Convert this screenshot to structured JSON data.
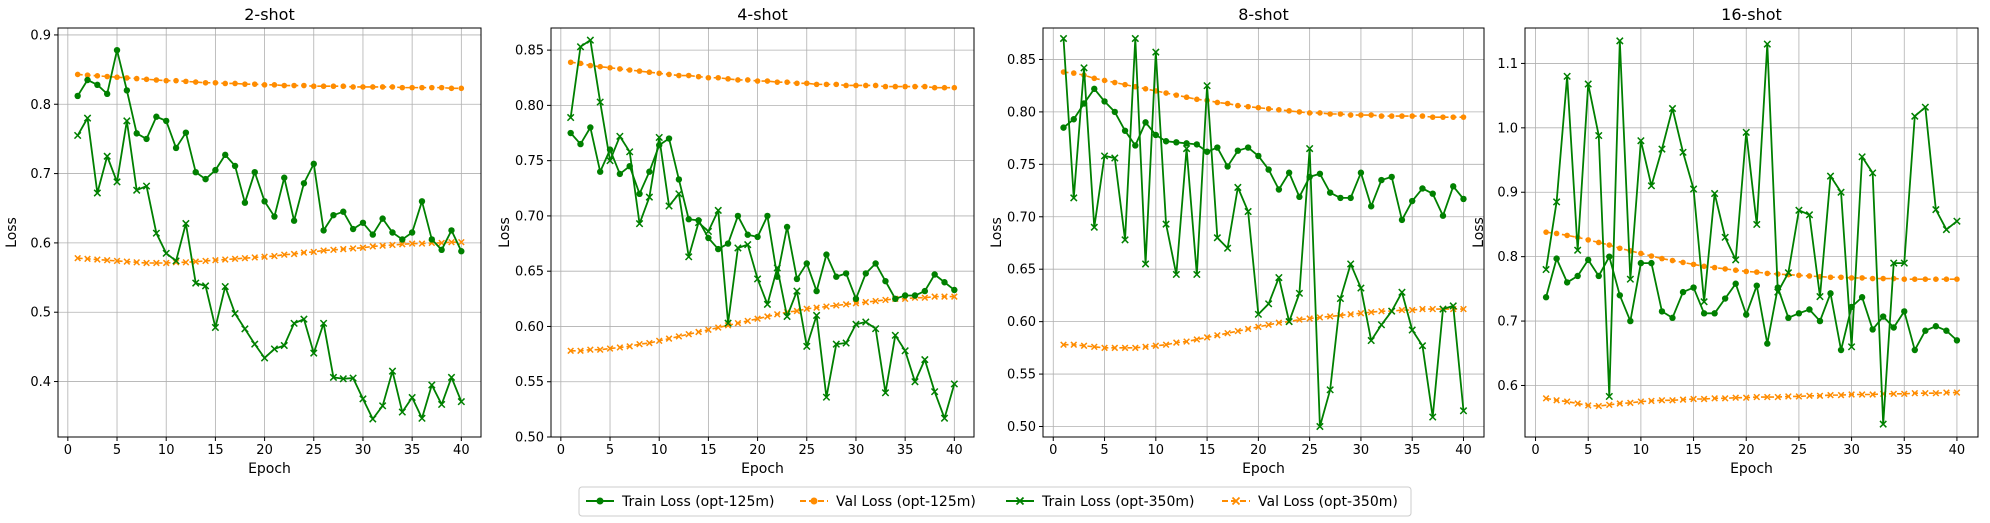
{
  "chart_data": [
    {
      "type": "line",
      "title": "2-shot",
      "xlabel": "Epoch",
      "ylabel": "Loss",
      "xlim": [
        -1,
        42
      ],
      "ylim": [
        0.32,
        0.91
      ],
      "xticks": [
        0,
        5,
        10,
        15,
        20,
        25,
        30,
        35,
        40
      ],
      "yticks": [
        0.4,
        0.5,
        0.6,
        0.7,
        0.8,
        0.9
      ],
      "ytick_labels": [
        "0.4",
        "0.5",
        "0.6",
        "0.7",
        "0.8",
        "0.9"
      ],
      "grid": true,
      "x": [
        1,
        2,
        3,
        4,
        5,
        6,
        7,
        8,
        9,
        10,
        11,
        12,
        13,
        14,
        15,
        16,
        17,
        18,
        19,
        20,
        21,
        22,
        23,
        24,
        25,
        26,
        27,
        28,
        29,
        30,
        31,
        32,
        33,
        34,
        35,
        36,
        37,
        38,
        39,
        40
      ],
      "series": [
        {
          "name": "Train Loss (opt-125m)",
          "values": [
            0.812,
            0.835,
            0.828,
            0.815,
            0.878,
            0.82,
            0.758,
            0.75,
            0.782,
            0.776,
            0.737,
            0.759,
            0.702,
            0.692,
            0.705,
            0.727,
            0.711,
            0.658,
            0.702,
            0.66,
            0.638,
            0.694,
            0.632,
            0.686,
            0.714,
            0.618,
            0.64,
            0.645,
            0.62,
            0.629,
            0.612,
            0.635,
            0.615,
            0.605,
            0.615,
            0.66,
            0.605,
            0.59,
            0.618,
            0.588
          ]
        },
        {
          "name": "Val Loss (opt-125m)",
          "values": [
            0.843,
            0.842,
            0.841,
            0.84,
            0.839,
            0.838,
            0.837,
            0.836,
            0.835,
            0.834,
            0.834,
            0.833,
            0.832,
            0.831,
            0.831,
            0.83,
            0.83,
            0.829,
            0.829,
            0.828,
            0.828,
            0.827,
            0.827,
            0.827,
            0.826,
            0.826,
            0.826,
            0.826,
            0.825,
            0.825,
            0.825,
            0.825,
            0.825,
            0.824,
            0.824,
            0.824,
            0.824,
            0.824,
            0.823,
            0.823
          ]
        },
        {
          "name": "Train Loss (opt-350m)",
          "values": [
            0.755,
            0.78,
            0.672,
            0.725,
            0.688,
            0.776,
            0.676,
            0.682,
            0.614,
            0.585,
            0.574,
            0.628,
            0.542,
            0.538,
            0.478,
            0.537,
            0.498,
            0.476,
            0.454,
            0.434,
            0.447,
            0.452,
            0.484,
            0.49,
            0.441,
            0.484,
            0.406,
            0.404,
            0.405,
            0.375,
            0.346,
            0.365,
            0.415,
            0.356,
            0.377,
            0.347,
            0.395,
            0.367,
            0.406,
            0.371
          ]
        },
        {
          "name": "Val Loss (opt-350m)",
          "values": [
            0.578,
            0.577,
            0.576,
            0.575,
            0.574,
            0.573,
            0.572,
            0.571,
            0.571,
            0.571,
            0.572,
            0.572,
            0.573,
            0.574,
            0.575,
            0.576,
            0.577,
            0.578,
            0.579,
            0.58,
            0.581,
            0.583,
            0.584,
            0.586,
            0.587,
            0.589,
            0.59,
            0.591,
            0.592,
            0.593,
            0.595,
            0.596,
            0.597,
            0.598,
            0.599,
            0.599,
            0.6,
            0.6,
            0.601,
            0.601
          ]
        }
      ]
    },
    {
      "type": "line",
      "title": "4-shot",
      "xlabel": "Epoch",
      "ylabel": "Loss",
      "xlim": [
        -1,
        42
      ],
      "ylim": [
        0.5,
        0.87
      ],
      "xticks": [
        0,
        5,
        10,
        15,
        20,
        25,
        30,
        35,
        40
      ],
      "yticks": [
        0.5,
        0.55,
        0.6,
        0.65,
        0.7,
        0.75,
        0.8,
        0.85
      ],
      "ytick_labels": [
        "0.50",
        "0.55",
        "0.60",
        "0.65",
        "0.70",
        "0.75",
        "0.80",
        "0.85"
      ],
      "grid": true,
      "x": [
        1,
        2,
        3,
        4,
        5,
        6,
        7,
        8,
        9,
        10,
        11,
        12,
        13,
        14,
        15,
        16,
        17,
        18,
        19,
        20,
        21,
        22,
        23,
        24,
        25,
        26,
        27,
        28,
        29,
        30,
        31,
        32,
        33,
        34,
        35,
        36,
        37,
        38,
        39,
        40
      ],
      "series": [
        {
          "name": "Train Loss (opt-125m)",
          "values": [
            0.775,
            0.765,
            0.78,
            0.74,
            0.76,
            0.738,
            0.745,
            0.72,
            0.74,
            0.764,
            0.77,
            0.733,
            0.697,
            0.696,
            0.68,
            0.67,
            0.675,
            0.7,
            0.683,
            0.681,
            0.7,
            0.645,
            0.69,
            0.643,
            0.657,
            0.632,
            0.665,
            0.645,
            0.648,
            0.625,
            0.648,
            0.657,
            0.641,
            0.625,
            0.628,
            0.628,
            0.632,
            0.647,
            0.64,
            0.633
          ]
        },
        {
          "name": "Val Loss (opt-125m)",
          "values": [
            0.839,
            0.838,
            0.836,
            0.835,
            0.834,
            0.833,
            0.832,
            0.831,
            0.83,
            0.829,
            0.828,
            0.827,
            0.827,
            0.826,
            0.825,
            0.825,
            0.824,
            0.823,
            0.823,
            0.822,
            0.822,
            0.821,
            0.821,
            0.82,
            0.82,
            0.819,
            0.819,
            0.819,
            0.818,
            0.818,
            0.818,
            0.818,
            0.817,
            0.817,
            0.817,
            0.817,
            0.817,
            0.816,
            0.816,
            0.816
          ]
        },
        {
          "name": "Train Loss (opt-350m)",
          "values": [
            0.789,
            0.853,
            0.859,
            0.803,
            0.75,
            0.772,
            0.758,
            0.693,
            0.717,
            0.771,
            0.709,
            0.72,
            0.663,
            0.694,
            0.686,
            0.705,
            0.603,
            0.671,
            0.674,
            0.643,
            0.62,
            0.653,
            0.609,
            0.632,
            0.582,
            0.61,
            0.536,
            0.584,
            0.585,
            0.602,
            0.604,
            0.598,
            0.54,
            0.592,
            0.578,
            0.55,
            0.57,
            0.541,
            0.517,
            0.548
          ]
        },
        {
          "name": "Val Loss (opt-350m)",
          "values": [
            0.578,
            0.578,
            0.579,
            0.579,
            0.58,
            0.581,
            0.582,
            0.584,
            0.585,
            0.587,
            0.589,
            0.591,
            0.593,
            0.595,
            0.597,
            0.599,
            0.601,
            0.603,
            0.605,
            0.607,
            0.609,
            0.611,
            0.613,
            0.614,
            0.616,
            0.617,
            0.618,
            0.619,
            0.62,
            0.621,
            0.622,
            0.623,
            0.624,
            0.625,
            0.625,
            0.626,
            0.626,
            0.627,
            0.627,
            0.627
          ]
        }
      ]
    },
    {
      "type": "line",
      "title": "8-shot",
      "xlabel": "Epoch",
      "ylabel": "Loss",
      "xlim": [
        -1,
        42
      ],
      "ylim": [
        0.49,
        0.88
      ],
      "xticks": [
        0,
        5,
        10,
        15,
        20,
        25,
        30,
        35,
        40
      ],
      "yticks": [
        0.5,
        0.55,
        0.6,
        0.65,
        0.7,
        0.75,
        0.8,
        0.85
      ],
      "ytick_labels": [
        "0.50",
        "0.55",
        "0.60",
        "0.65",
        "0.70",
        "0.75",
        "0.80",
        "0.85"
      ],
      "grid": true,
      "x": [
        1,
        2,
        3,
        4,
        5,
        6,
        7,
        8,
        9,
        10,
        11,
        12,
        13,
        14,
        15,
        16,
        17,
        18,
        19,
        20,
        21,
        22,
        23,
        24,
        25,
        26,
        27,
        28,
        29,
        30,
        31,
        32,
        33,
        34,
        35,
        36,
        37,
        38,
        39,
        40
      ],
      "series": [
        {
          "name": "Train Loss (opt-125m)",
          "values": [
            0.785,
            0.793,
            0.808,
            0.822,
            0.81,
            0.8,
            0.782,
            0.768,
            0.79,
            0.778,
            0.772,
            0.771,
            0.77,
            0.769,
            0.762,
            0.766,
            0.748,
            0.763,
            0.766,
            0.758,
            0.745,
            0.726,
            0.742,
            0.719,
            0.738,
            0.741,
            0.723,
            0.718,
            0.718,
            0.742,
            0.71,
            0.735,
            0.738,
            0.697,
            0.715,
            0.727,
            0.722,
            0.701,
            0.729,
            0.717
          ]
        },
        {
          "name": "Val Loss (opt-125m)",
          "values": [
            0.838,
            0.837,
            0.835,
            0.832,
            0.83,
            0.828,
            0.826,
            0.824,
            0.822,
            0.82,
            0.818,
            0.816,
            0.814,
            0.812,
            0.811,
            0.809,
            0.808,
            0.806,
            0.805,
            0.804,
            0.803,
            0.802,
            0.801,
            0.8,
            0.799,
            0.799,
            0.798,
            0.798,
            0.797,
            0.797,
            0.797,
            0.796,
            0.796,
            0.796,
            0.796,
            0.796,
            0.795,
            0.795,
            0.795,
            0.795
          ]
        },
        {
          "name": "Train Loss (opt-350m)",
          "values": [
            0.87,
            0.718,
            0.842,
            0.69,
            0.758,
            0.756,
            0.678,
            0.87,
            0.655,
            0.857,
            0.693,
            0.645,
            0.765,
            0.645,
            0.825,
            0.68,
            0.67,
            0.728,
            0.705,
            0.607,
            0.617,
            0.642,
            0.6,
            0.627,
            0.765,
            0.5,
            0.535,
            0.622,
            0.655,
            0.632,
            0.582,
            0.597,
            0.61,
            0.628,
            0.592,
            0.577,
            0.509,
            0.612,
            0.615,
            0.515
          ]
        },
        {
          "name": "Val Loss (opt-350m)",
          "values": [
            0.578,
            0.578,
            0.577,
            0.576,
            0.575,
            0.575,
            0.575,
            0.575,
            0.576,
            0.577,
            0.578,
            0.58,
            0.581,
            0.583,
            0.585,
            0.587,
            0.589,
            0.591,
            0.593,
            0.595,
            0.597,
            0.599,
            0.6,
            0.602,
            0.603,
            0.604,
            0.605,
            0.606,
            0.607,
            0.608,
            0.609,
            0.61,
            0.61,
            0.611,
            0.611,
            0.612,
            0.612,
            0.612,
            0.612,
            0.612
          ]
        }
      ]
    },
    {
      "type": "line",
      "title": "16-shot",
      "xlabel": "Epoch",
      "ylabel": "Loss",
      "xlim": [
        -1,
        42
      ],
      "ylim": [
        0.52,
        1.155
      ],
      "xticks": [
        0,
        5,
        10,
        15,
        20,
        25,
        30,
        35,
        40
      ],
      "yticks": [
        0.6,
        0.7,
        0.8,
        0.9,
        1.0,
        1.1
      ],
      "ytick_labels": [
        "0.6",
        "0.7",
        "0.8",
        "0.9",
        "1.0",
        "1.1"
      ],
      "grid": true,
      "x": [
        1,
        2,
        3,
        4,
        5,
        6,
        7,
        8,
        9,
        10,
        11,
        12,
        13,
        14,
        15,
        16,
        17,
        18,
        19,
        20,
        21,
        22,
        23,
        24,
        25,
        26,
        27,
        28,
        29,
        30,
        31,
        32,
        33,
        34,
        35,
        36,
        37,
        38,
        39,
        40
      ],
      "series": [
        {
          "name": "Train Loss (opt-125m)",
          "values": [
            0.737,
            0.797,
            0.76,
            0.77,
            0.795,
            0.77,
            0.8,
            0.74,
            0.7,
            0.79,
            0.79,
            0.715,
            0.705,
            0.745,
            0.752,
            0.712,
            0.712,
            0.735,
            0.758,
            0.71,
            0.755,
            0.665,
            0.752,
            0.705,
            0.712,
            0.718,
            0.7,
            0.743,
            0.655,
            0.722,
            0.737,
            0.687,
            0.707,
            0.69,
            0.715,
            0.655,
            0.685,
            0.692,
            0.685,
            0.67
          ]
        },
        {
          "name": "Val Loss (opt-125m)",
          "values": [
            0.838,
            0.836,
            0.833,
            0.83,
            0.826,
            0.822,
            0.818,
            0.813,
            0.809,
            0.805,
            0.801,
            0.797,
            0.794,
            0.791,
            0.788,
            0.785,
            0.783,
            0.781,
            0.779,
            0.777,
            0.776,
            0.774,
            0.773,
            0.772,
            0.771,
            0.77,
            0.769,
            0.768,
            0.768,
            0.767,
            0.767,
            0.766,
            0.766,
            0.766,
            0.765,
            0.765,
            0.765,
            0.765,
            0.765,
            0.765
          ]
        },
        {
          "name": "Train Loss (opt-350m)",
          "values": [
            0.78,
            0.885,
            1.08,
            0.81,
            1.068,
            0.988,
            0.583,
            1.135,
            0.765,
            0.98,
            0.91,
            0.967,
            1.03,
            0.962,
            0.905,
            0.73,
            0.898,
            0.83,
            0.795,
            0.993,
            0.85,
            1.13,
            0.745,
            0.775,
            0.872,
            0.865,
            0.738,
            0.925,
            0.9,
            0.66,
            0.955,
            0.93,
            0.54,
            0.79,
            0.79,
            1.018,
            1.032,
            0.873,
            0.842,
            0.855
          ]
        },
        {
          "name": "Val Loss (opt-350m)",
          "values": [
            0.58,
            0.577,
            0.575,
            0.572,
            0.569,
            0.568,
            0.57,
            0.572,
            0.573,
            0.575,
            0.576,
            0.577,
            0.577,
            0.578,
            0.579,
            0.579,
            0.58,
            0.58,
            0.581,
            0.581,
            0.582,
            0.582,
            0.582,
            0.583,
            0.583,
            0.584,
            0.584,
            0.585,
            0.585,
            0.586,
            0.586,
            0.586,
            0.587,
            0.587,
            0.587,
            0.588,
            0.588,
            0.588,
            0.589,
            0.589
          ]
        }
      ]
    }
  ],
  "legend": {
    "placement": "bottom-center",
    "items": [
      "Train Loss (opt-125m)",
      "Val Loss (opt-125m)",
      "Train Loss (opt-350m)",
      "Val Loss (opt-350m)"
    ]
  },
  "colors": {
    "train": "#008000",
    "val": "#ff8c00",
    "grid": "#b0b0b0"
  }
}
